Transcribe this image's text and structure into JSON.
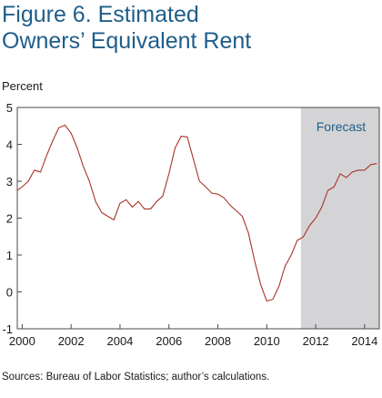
{
  "figure": {
    "title_line1": "Figure 6. Estimated",
    "title_line2": "Owners’ Equivalent Rent",
    "ylabel": "Percent",
    "source": "Sources: Bureau of Labor Statistics; author’s calculations."
  },
  "colors": {
    "line": "#a8342a",
    "forecast_fill": "#d4d4d6",
    "axis": "#4a4a4a",
    "title": "#1f5e8a"
  },
  "chart_data": {
    "type": "line",
    "title": "Figure 6. Estimated Owners’ Equivalent Rent",
    "xlabel": "",
    "ylabel": "Percent",
    "xlim": [
      1999.8,
      2014.6
    ],
    "ylim": [
      -1,
      5
    ],
    "grid": false,
    "x_ticks": [
      "2000",
      "2002",
      "2004",
      "2006",
      "2008",
      "2010",
      "2012",
      "2014"
    ],
    "y_ticks": [
      "-1",
      "0",
      "1",
      "2",
      "3",
      "4",
      "5"
    ],
    "forecast": {
      "label": "Forecast",
      "start": 2011.4,
      "end": 2014.6
    },
    "series": [
      {
        "x": [
          1999.8,
          2000.0,
          2000.25,
          2000.5,
          2000.75,
          2001.0,
          2001.25,
          2001.5,
          2001.75,
          2002.0,
          2002.25,
          2002.5,
          2002.75,
          2003.0,
          2003.25,
          2003.5,
          2003.75,
          2004.0,
          2004.25,
          2004.5,
          2004.75,
          2005.0,
          2005.25,
          2005.5,
          2005.75,
          2006.0,
          2006.25,
          2006.5,
          2006.75,
          2007.0,
          2007.25,
          2007.5,
          2007.75,
          2008.0,
          2008.25,
          2008.5,
          2008.75,
          2009.0,
          2009.25,
          2009.5,
          2009.75,
          2010.0,
          2010.25,
          2010.5,
          2010.75,
          2011.0,
          2011.25,
          2011.4,
          2011.5,
          2011.75,
          2012.0,
          2012.25,
          2012.5,
          2012.75,
          2013.0,
          2013.25,
          2013.5,
          2013.75,
          2014.0,
          2014.25,
          2014.5
        ],
        "y": [
          2.75,
          2.85,
          3.0,
          3.3,
          3.25,
          3.7,
          4.1,
          4.45,
          4.52,
          4.3,
          3.9,
          3.4,
          3.0,
          2.45,
          2.15,
          2.05,
          1.95,
          2.4,
          2.5,
          2.3,
          2.45,
          2.25,
          2.25,
          2.45,
          2.6,
          3.2,
          3.9,
          4.22,
          4.2,
          3.6,
          3.0,
          2.85,
          2.68,
          2.65,
          2.55,
          2.35,
          2.2,
          2.05,
          1.6,
          0.85,
          0.2,
          -0.25,
          -0.2,
          0.15,
          0.7,
          1.0,
          1.4,
          1.45,
          1.5,
          1.8,
          2.0,
          2.3,
          2.75,
          2.85,
          3.2,
          3.1,
          3.25,
          3.3,
          3.3,
          3.45,
          3.48
        ]
      }
    ]
  }
}
